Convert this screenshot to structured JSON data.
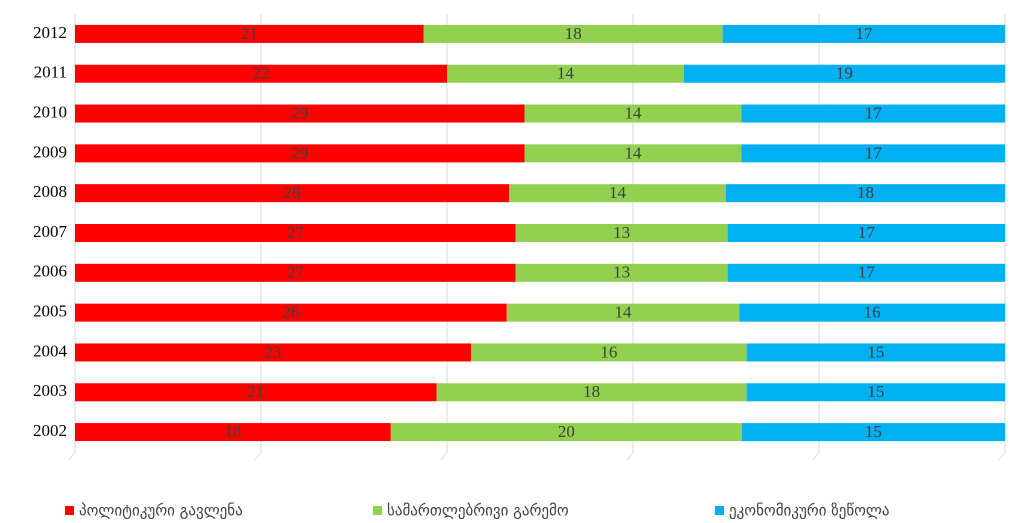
{
  "chart_data": {
    "type": "stacked-bar-horizontal",
    "stacking": "percent",
    "categories": [
      "2012",
      "2011",
      "2010",
      "2009",
      "2008",
      "2007",
      "2006",
      "2005",
      "2004",
      "2003",
      "2002"
    ],
    "series": [
      {
        "name": "პოლიტიკური გავლენა",
        "color": "#ff0000",
        "values": [
          21,
          22,
          29,
          29,
          28,
          27,
          27,
          26,
          23,
          21,
          18
        ]
      },
      {
        "name": "სამართლებრივი გარემო",
        "color": "#92d050",
        "values": [
          18,
          14,
          14,
          14,
          14,
          13,
          13,
          14,
          16,
          18,
          20
        ]
      },
      {
        "name": "ეკონომიკური ზეწოლა",
        "color": "#00b0f0",
        "values": [
          17,
          19,
          17,
          17,
          18,
          17,
          17,
          16,
          15,
          15,
          15
        ]
      }
    ],
    "xlim": [
      0,
      100
    ],
    "xticks": [
      0,
      20,
      40,
      60,
      80,
      100
    ],
    "grid": true,
    "legend": "bottom"
  }
}
